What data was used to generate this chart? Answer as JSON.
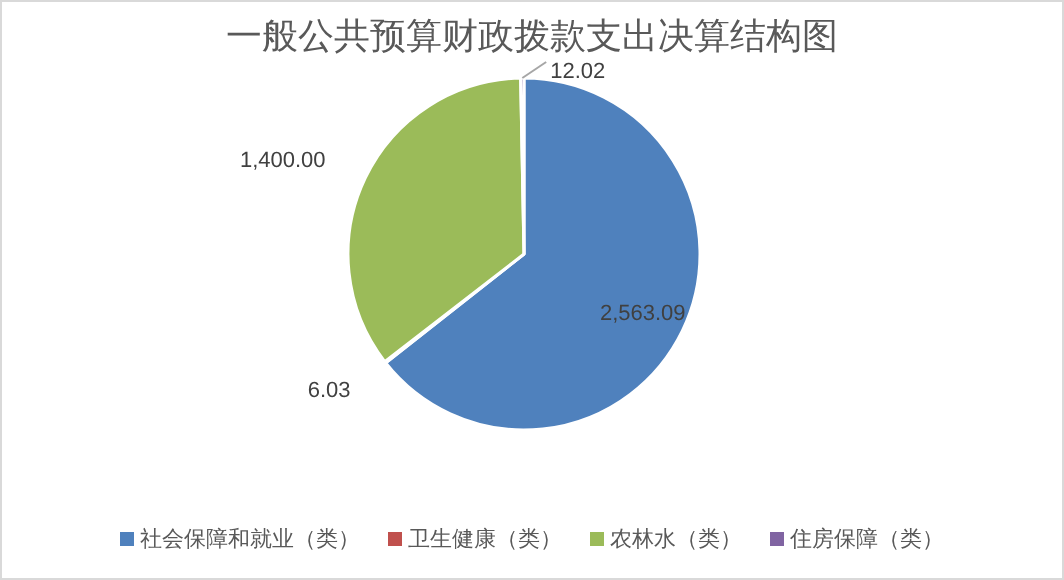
{
  "chart_data": {
    "type": "pie",
    "title": "一般公共预算财政拨款支出决算结构图",
    "categories": [
      "社会保障和就业（类）",
      "卫生健康（类）",
      "农林水（类）",
      "住房保障（类）"
    ],
    "values": [
      2563.09,
      6.03,
      1400.0,
      12.02
    ],
    "colors": [
      "#4f81bd",
      "#c0504d",
      "#9bbb59",
      "#8064a2"
    ],
    "value_labels": [
      "2,563.09",
      "6.03",
      "1,400.00",
      "12.02"
    ],
    "legend": "bottom"
  }
}
